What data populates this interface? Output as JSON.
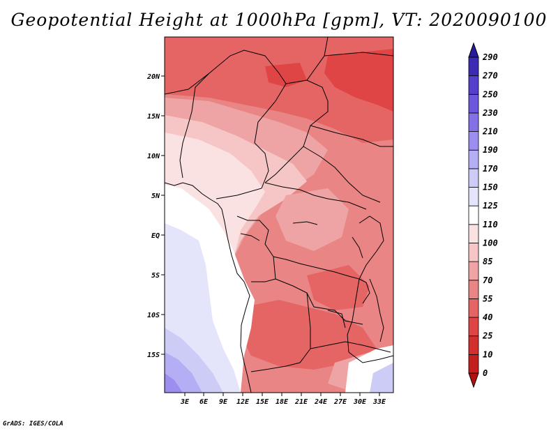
{
  "title": "Geopotential Height at 1000hPa [gpm], VT: 2020090100",
  "credit": "GrADS: IGES/COLA",
  "map": {
    "latitude_labels": [
      "20N",
      "15N",
      "10N",
      "5N",
      "EQ",
      "5S",
      "10S",
      "15S"
    ],
    "longitude_labels": [
      "3E",
      "6E",
      "9E",
      "12E",
      "15E",
      "18E",
      "21E",
      "24E",
      "27E",
      "30E",
      "33E"
    ]
  },
  "colorbar": {
    "levels": [
      "0",
      "10",
      "25",
      "40",
      "55",
      "70",
      "85",
      "100",
      "110",
      "125",
      "150",
      "170",
      "190",
      "210",
      "230",
      "250",
      "270",
      "290"
    ],
    "colors": [
      "#b40f0f",
      "#c41f1f",
      "#d42f2f",
      "#e04545",
      "#e56565",
      "#e98585",
      "#eea4a4",
      "#f6c6c6",
      "#fbe2e2",
      "#ffffff",
      "#e4e4fa",
      "#ccccf6",
      "#b4aef4",
      "#9c8ef0",
      "#8471e8",
      "#6c57dc",
      "#5440cc",
      "#3c2cb4",
      "#2a1c98"
    ]
  },
  "palette": {
    "red_strong": "#e04545",
    "red_mid": "#e56565",
    "red_light": "#e98585",
    "pink": "#eea4a4",
    "pink_light": "#f6c6c6",
    "pink_pale": "#fbe2e2",
    "white": "#ffffff",
    "lav_pale": "#e4e4fa",
    "lav": "#ccccf6",
    "lav_mid": "#b4aef4",
    "lav_deep": "#9c8ef0"
  }
}
